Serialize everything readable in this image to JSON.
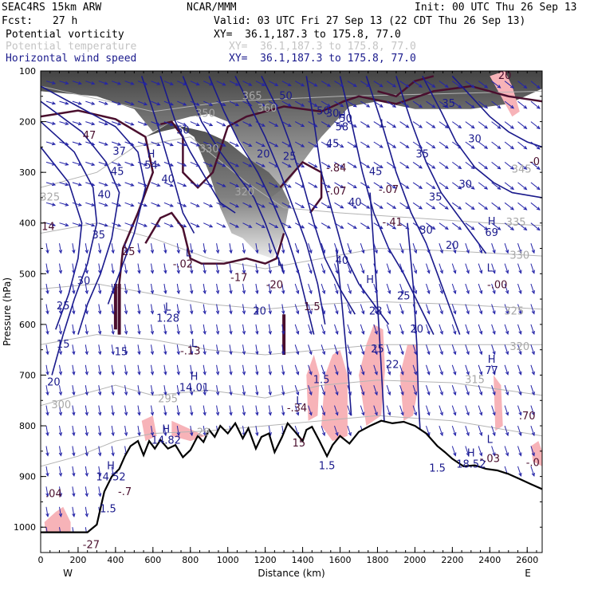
{
  "header": {
    "model": "SEAC4RS 15km ARW",
    "org": "NCAR/MMM",
    "init": "Init: 00 UTC Thu 26 Sep 13",
    "fcst_label": "Fcst:",
    "fcst_value": "27 h",
    "valid": "Valid: 03 UTC Fri 27 Sep 13 (22 CDT Thu 26 Sep 13)"
  },
  "legend": [
    {
      "name": "Potential vorticity",
      "xy": "XY=  36.1,187.3 to 175.8, 77.0",
      "color": "#000000"
    },
    {
      "name": "Potential temperature",
      "xy": "XY=  36.1,187.3 to 175.8, 77.0",
      "color": "#bdbdbd"
    },
    {
      "name": "Horizontal wind speed",
      "xy": "XY=  36.1,187.3 to 175.8, 77.0",
      "color": "#1a1a8c"
    }
  ],
  "chart_data": {
    "type": "heatmap",
    "xlabel": "Distance (km)",
    "ylabel": "Pressure (hPa)",
    "xlim": [
      0,
      2680
    ],
    "ylim": [
      1050,
      100
    ],
    "x_ticks": [
      0,
      200,
      400,
      600,
      800,
      1000,
      1200,
      1400,
      1600,
      1800,
      2000,
      2200,
      2400,
      2600
    ],
    "y_ticks": [
      100,
      200,
      300,
      400,
      500,
      600,
      700,
      800,
      900,
      1000
    ],
    "x_ticks_minor_step": 50,
    "y_ticks_minor_step": 50,
    "end_labels": {
      "left": "W",
      "right": "E"
    },
    "colors": {
      "pv_shade_dark": "#3a3a3a",
      "pv_shade_light": "#d8d8d8",
      "pv_contour": "#4a0f2e",
      "theta_contour": "#b4b4b4",
      "wind_contour": "#1a1a8c",
      "pink_fill": "#f7b3b8",
      "terrain": "#000000"
    },
    "theta_labels": [
      {
        "x": 1130,
        "p": 150,
        "t": "365"
      },
      {
        "x": 1210,
        "p": 175,
        "t": "360"
      },
      {
        "x": 880,
        "p": 185,
        "t": "350"
      },
      {
        "x": 900,
        "p": 255,
        "t": "330"
      },
      {
        "x": 1090,
        "p": 340,
        "t": "320"
      },
      {
        "x": 2570,
        "p": 295,
        "t": "345"
      },
      {
        "x": 2540,
        "p": 400,
        "t": "335"
      },
      {
        "x": 2560,
        "p": 465,
        "t": "330"
      },
      {
        "x": 2530,
        "p": 575,
        "t": "325"
      },
      {
        "x": 2560,
        "p": 645,
        "t": "320"
      },
      {
        "x": 2320,
        "p": 710,
        "t": "315"
      },
      {
        "x": 50,
        "p": 350,
        "t": "325"
      },
      {
        "x": 110,
        "p": 760,
        "t": "300"
      },
      {
        "x": 680,
        "p": 748,
        "t": "295"
      },
      {
        "x": 870,
        "p": 814,
        "t": "29"
      }
    ],
    "wind_labels": [
      {
        "x": 1630,
        "p": 195,
        "t": "50"
      },
      {
        "x": 1310,
        "p": 150,
        "t": "50"
      },
      {
        "x": 1190,
        "p": 265,
        "t": "20"
      },
      {
        "x": 1330,
        "p": 270,
        "t": "25"
      },
      {
        "x": 2270,
        "p": 325,
        "t": "30"
      },
      {
        "x": 2110,
        "p": 350,
        "t": "35"
      },
      {
        "x": 2200,
        "p": 445,
        "t": "20"
      },
      {
        "x": 1790,
        "p": 300,
        "t": "45"
      },
      {
        "x": 1680,
        "p": 360,
        "t": "40"
      },
      {
        "x": 2060,
        "p": 415,
        "t": "30"
      },
      {
        "x": 1610,
        "p": 475,
        "t": "40"
      },
      {
        "x": 1940,
        "p": 545,
        "t": "25"
      },
      {
        "x": 2010,
        "p": 610,
        "t": "20"
      },
      {
        "x": 1800,
        "p": 650,
        "t": "25"
      },
      {
        "x": 1880,
        "p": 680,
        "t": "22"
      },
      {
        "x": 1790,
        "p": 575,
        "t": "28"
      },
      {
        "x": 1170,
        "p": 575,
        "t": "20"
      },
      {
        "x": 420,
        "p": 260,
        "t": "37"
      },
      {
        "x": 410,
        "p": 300,
        "t": "45"
      },
      {
        "x": 340,
        "p": 345,
        "t": "40"
      },
      {
        "x": 310,
        "p": 425,
        "t": "35"
      },
      {
        "x": 230,
        "p": 515,
        "t": "30"
      },
      {
        "x": 120,
        "p": 565,
        "t": "25"
      },
      {
        "x": 70,
        "p": 715,
        "t": "20"
      },
      {
        "x": 120,
        "p": 640,
        "t": "15"
      },
      {
        "x": 430,
        "p": 655,
        "t": "15"
      },
      {
        "x": 680,
        "p": 315,
        "t": "40"
      },
      {
        "x": 760,
        "p": 218,
        "t": "50"
      },
      {
        "x": 1510,
        "p": 180,
        "t": "50"
      },
      {
        "x": 1560,
        "p": 245,
        "t": "45"
      },
      {
        "x": 1560,
        "p": 185,
        "t": "30"
      },
      {
        "x": 2180,
        "p": 165,
        "t": "35"
      },
      {
        "x": 2320,
        "p": 235,
        "t": "30"
      },
      {
        "x": 2040,
        "p": 265,
        "t": "35"
      },
      {
        "x": 1530,
        "p": 880,
        "t": "1.5"
      },
      {
        "x": 1500,
        "p": 710,
        "t": "1.5"
      },
      {
        "x": 360,
        "p": 965,
        "t": "1.5"
      },
      {
        "x": 2120,
        "p": 885,
        "t": "1.5"
      }
    ],
    "pv_labels": [
      {
        "x": 1580,
        "p": 293,
        "t": "-.84"
      },
      {
        "x": 1580,
        "p": 338,
        "t": "-.07"
      },
      {
        "x": 1860,
        "p": 335,
        "t": "-.07"
      },
      {
        "x": 2640,
        "p": 280,
        "t": "-0"
      },
      {
        "x": 760,
        "p": 482,
        "t": "-.02"
      },
      {
        "x": 1250,
        "p": 523,
        "t": "-20"
      },
      {
        "x": 1060,
        "p": 509,
        "t": "-17"
      },
      {
        "x": 2440,
        "p": 523,
        "t": "-.00"
      },
      {
        "x": 1450,
        "p": 566,
        "t": "1.5"
      },
      {
        "x": 800,
        "p": 654,
        "t": "-.13"
      },
      {
        "x": 1370,
        "p": 766,
        "t": "-.34"
      },
      {
        "x": 1380,
        "p": 835,
        "t": "15"
      },
      {
        "x": 2400,
        "p": 866,
        "t": "-.03"
      },
      {
        "x": 2630,
        "p": 874,
        "t": "-.0"
      },
      {
        "x": 70,
        "p": 935,
        "t": ".04"
      },
      {
        "x": 270,
        "p": 1036,
        "t": "-27"
      },
      {
        "x": 450,
        "p": 931,
        "t": "-.7"
      },
      {
        "x": 2600,
        "p": 782,
        "t": ".70"
      },
      {
        "x": 1880,
        "p": 400,
        "t": "-.41"
      },
      {
        "x": 40,
        "p": 408,
        "t": "14"
      },
      {
        "x": 260,
        "p": 228,
        "t": "47"
      },
      {
        "x": 470,
        "p": 458,
        "t": "25"
      },
      {
        "x": 2480,
        "p": 110,
        "t": "20"
      }
    ],
    "extrema": [
      {
        "x": 590,
        "p": 265,
        "kind": "H",
        "value": "54"
      },
      {
        "x": 1610,
        "p": 190,
        "kind": "H",
        "value": "58"
      },
      {
        "x": 1830,
        "p": 205,
        "kind": "L",
        "value": ""
      },
      {
        "x": 2410,
        "p": 398,
        "kind": "H",
        "value": "69"
      },
      {
        "x": 2400,
        "p": 490,
        "kind": "L",
        "value": ""
      },
      {
        "x": 2410,
        "p": 670,
        "kind": "H",
        "value": "77"
      },
      {
        "x": 790,
        "p": 460,
        "kind": "L",
        "value": ""
      },
      {
        "x": 1280,
        "p": 478,
        "kind": "L",
        "value": ""
      },
      {
        "x": 1760,
        "p": 513,
        "kind": "H",
        "value": ""
      },
      {
        "x": 680,
        "p": 567,
        "kind": "L",
        "value": "1.28"
      },
      {
        "x": 820,
        "p": 639,
        "kind": "L",
        "value": ""
      },
      {
        "x": 820,
        "p": 704,
        "kind": "H",
        "value": "14.01"
      },
      {
        "x": 1380,
        "p": 752,
        "kind": "L",
        "value": ""
      },
      {
        "x": 670,
        "p": 808,
        "kind": "H",
        "value": "14.82"
      },
      {
        "x": 375,
        "p": 880,
        "kind": "H",
        "value": "14.52"
      },
      {
        "x": 2300,
        "p": 855,
        "kind": "H",
        "value": "18.52"
      },
      {
        "x": 2400,
        "p": 828,
        "kind": "L",
        "value": ""
      }
    ]
  }
}
